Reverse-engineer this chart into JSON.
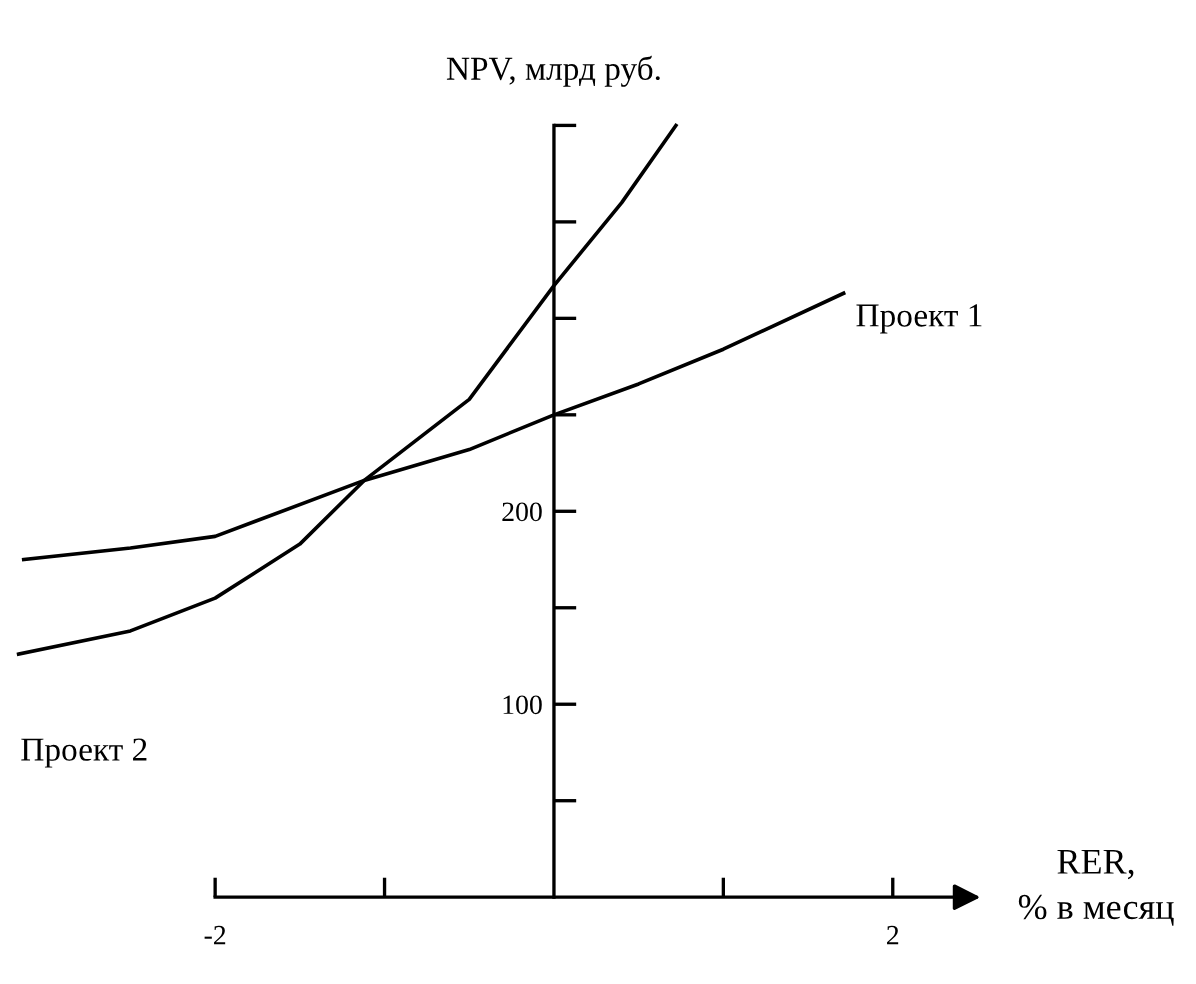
{
  "chart_data": {
    "type": "line",
    "ylabel": "NPV, млрд руб.",
    "xlabel": "RER,\n% в месяц",
    "xlim": [
      -3.27,
      3.79
    ],
    "ylim": [
      -45,
      465
    ],
    "xticks": [
      -2,
      {
        "value": -1,
        "label": null
      },
      {
        "value": 1,
        "label": null
      },
      2
    ],
    "yticks": [
      {
        "value": 50,
        "label": null
      },
      100,
      {
        "value": 150,
        "label": null
      },
      200,
      {
        "value": 250,
        "label": null
      },
      {
        "value": 300,
        "label": null
      },
      {
        "value": 350,
        "label": null
      },
      {
        "value": 400,
        "label": null
      }
    ],
    "series": [
      {
        "name": "Проект 1",
        "color": "#000000",
        "x": [
          -3.13,
          -2.5,
          -2,
          -1.12,
          -0.5,
          0,
          0.5,
          1,
          1.71
        ],
        "values": [
          175,
          181,
          187,
          216,
          232,
          250,
          266,
          284,
          313
        ]
      },
      {
        "name": "Проект 2",
        "color": "#000000",
        "x": [
          -3.16,
          -2.5,
          -2,
          -1.5,
          -1.12,
          -0.5,
          0,
          0.4,
          0.72
        ],
        "values": [
          126,
          138,
          155,
          183,
          216,
          258,
          317,
          360,
          400
        ]
      }
    ]
  }
}
